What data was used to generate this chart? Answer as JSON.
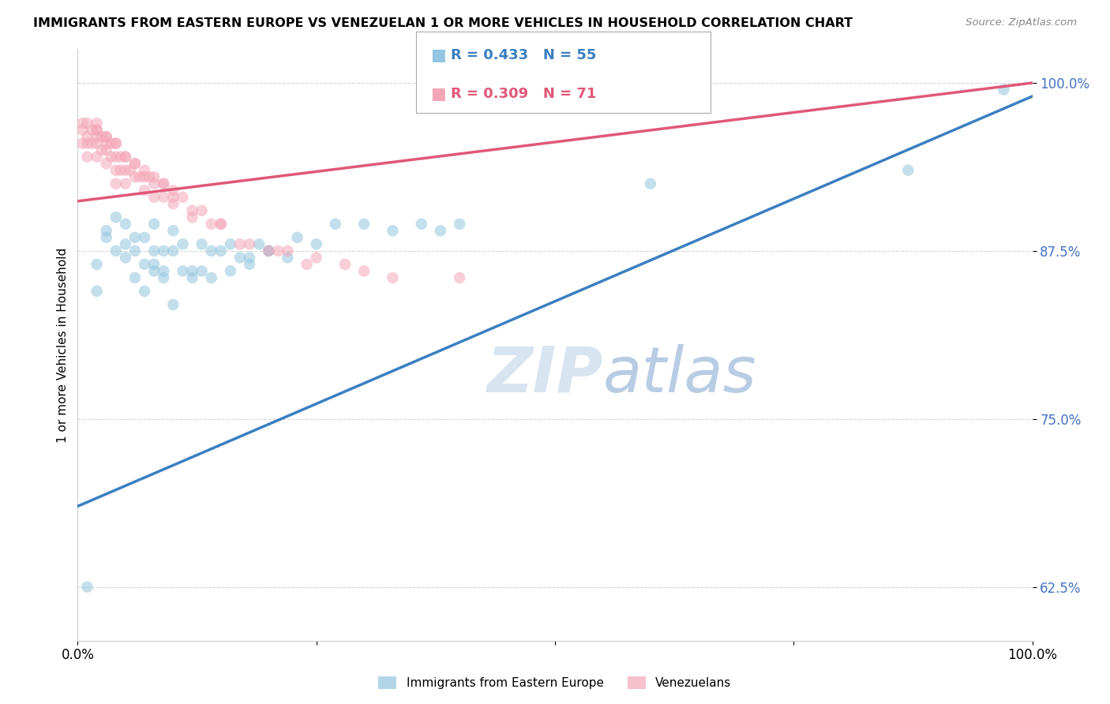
{
  "title": "IMMIGRANTS FROM EASTERN EUROPE VS VENEZUELAN 1 OR MORE VEHICLES IN HOUSEHOLD CORRELATION CHART",
  "source": "Source: ZipAtlas.com",
  "ylabel": "1 or more Vehicles in Household",
  "ytick_values": [
    0.625,
    0.75,
    0.875,
    1.0
  ],
  "ytick_labels": [
    "62.5%",
    "75.0%",
    "87.5%",
    "100.0%"
  ],
  "xlim": [
    0.0,
    1.0
  ],
  "ylim": [
    0.585,
    1.025
  ],
  "legend_blue_label": "Immigrants from Eastern Europe",
  "legend_pink_label": "Venezuelans",
  "r_blue": 0.433,
  "n_blue": 55,
  "r_pink": 0.309,
  "n_pink": 71,
  "blue_color": "#92c5de",
  "pink_color": "#f4a6b8",
  "trendline_blue_color": "#3a7fc1",
  "trendline_pink_color": "#e05878",
  "watermark_color": "#d8e4f0",
  "blue_x": [
    0.01,
    0.02,
    0.02,
    0.03,
    0.03,
    0.04,
    0.04,
    0.05,
    0.05,
    0.05,
    0.06,
    0.06,
    0.07,
    0.07,
    0.08,
    0.08,
    0.08,
    0.09,
    0.09,
    0.1,
    0.1,
    0.11,
    0.11,
    0.12,
    0.13,
    0.13,
    0.14,
    0.15,
    0.16,
    0.17,
    0.18,
    0.19,
    0.2,
    0.22,
    0.23,
    0.25,
    0.27,
    0.3,
    0.33,
    0.36,
    0.38,
    0.4,
    0.1,
    0.12,
    0.14,
    0.16,
    0.18,
    0.2,
    0.08,
    0.09,
    0.06,
    0.07,
    0.6,
    0.87,
    0.97
  ],
  "blue_y": [
    0.625,
    0.865,
    0.845,
    0.89,
    0.885,
    0.9,
    0.875,
    0.895,
    0.88,
    0.87,
    0.885,
    0.875,
    0.885,
    0.865,
    0.895,
    0.875,
    0.865,
    0.875,
    0.86,
    0.89,
    0.875,
    0.88,
    0.86,
    0.86,
    0.88,
    0.86,
    0.875,
    0.875,
    0.88,
    0.87,
    0.87,
    0.88,
    0.875,
    0.87,
    0.885,
    0.88,
    0.895,
    0.895,
    0.89,
    0.895,
    0.89,
    0.895,
    0.835,
    0.855,
    0.855,
    0.86,
    0.865,
    0.875,
    0.86,
    0.855,
    0.855,
    0.845,
    0.925,
    0.935,
    0.995
  ],
  "pink_x": [
    0.005,
    0.005,
    0.01,
    0.01,
    0.01,
    0.015,
    0.015,
    0.02,
    0.02,
    0.02,
    0.02,
    0.025,
    0.025,
    0.03,
    0.03,
    0.03,
    0.03,
    0.035,
    0.035,
    0.04,
    0.04,
    0.04,
    0.04,
    0.045,
    0.045,
    0.05,
    0.05,
    0.05,
    0.055,
    0.06,
    0.06,
    0.065,
    0.07,
    0.07,
    0.075,
    0.08,
    0.08,
    0.09,
    0.09,
    0.1,
    0.1,
    0.11,
    0.12,
    0.13,
    0.14,
    0.15,
    0.17,
    0.2,
    0.22,
    0.25,
    0.28,
    0.3,
    0.33,
    0.02,
    0.03,
    0.04,
    0.05,
    0.06,
    0.07,
    0.08,
    0.09,
    0.1,
    0.12,
    0.15,
    0.18,
    0.21,
    0.24,
    0.005,
    0.01,
    0.02,
    0.4
  ],
  "pink_y": [
    0.955,
    0.965,
    0.96,
    0.955,
    0.945,
    0.965,
    0.955,
    0.965,
    0.96,
    0.955,
    0.945,
    0.96,
    0.95,
    0.96,
    0.955,
    0.95,
    0.94,
    0.955,
    0.945,
    0.955,
    0.945,
    0.935,
    0.925,
    0.945,
    0.935,
    0.945,
    0.935,
    0.925,
    0.935,
    0.94,
    0.93,
    0.93,
    0.93,
    0.92,
    0.93,
    0.925,
    0.915,
    0.925,
    0.915,
    0.92,
    0.91,
    0.915,
    0.9,
    0.905,
    0.895,
    0.895,
    0.88,
    0.875,
    0.875,
    0.87,
    0.865,
    0.86,
    0.855,
    0.965,
    0.96,
    0.955,
    0.945,
    0.94,
    0.935,
    0.93,
    0.925,
    0.915,
    0.905,
    0.895,
    0.88,
    0.875,
    0.865,
    0.97,
    0.97,
    0.97,
    0.855
  ]
}
